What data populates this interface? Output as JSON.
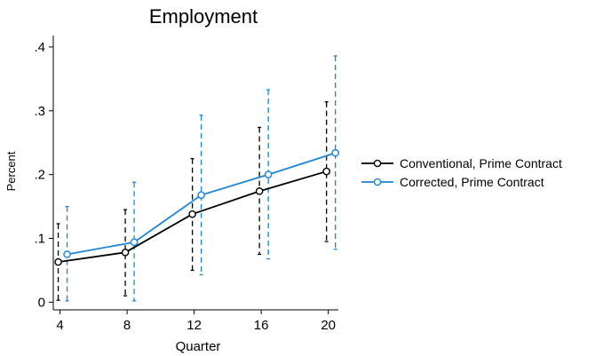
{
  "chart_data": {
    "type": "line",
    "title": "Employment",
    "xlabel": "Quarter",
    "ylabel": "Percent",
    "x": [
      4,
      8,
      12,
      16,
      20
    ],
    "x_ticks": [
      "4",
      "8",
      "12",
      "16",
      "20"
    ],
    "y_ticks": [
      {
        "value": 0,
        "label": "0"
      },
      {
        "value": 0.1,
        "label": ".1"
      },
      {
        "value": 0.2,
        "label": ".2"
      },
      {
        "value": 0.3,
        "label": ".3"
      },
      {
        "value": 0.4,
        "label": ".4"
      }
    ],
    "xlim": [
      3.6,
      20.6
    ],
    "ylim": [
      -0.012,
      0.418
    ],
    "grid": false,
    "legend_position": "right",
    "series": [
      {
        "name": "Conventional, Prime Contract",
        "color": "#000000",
        "values": [
          0.063,
          0.078,
          0.138,
          0.174,
          0.205
        ],
        "ci_low": [
          0.003,
          0.01,
          0.05,
          0.075,
          0.095
        ],
        "ci_high": [
          0.123,
          0.145,
          0.225,
          0.274,
          0.314
        ]
      },
      {
        "name": "Corrected, Prime Contract",
        "color": "#1a85d6",
        "values": [
          0.075,
          0.094,
          0.168,
          0.2,
          0.234
        ],
        "ci_low": [
          0.002,
          0.002,
          0.043,
          0.068,
          0.083
        ],
        "ci_high": [
          0.15,
          0.188,
          0.293,
          0.333,
          0.386
        ]
      }
    ]
  }
}
